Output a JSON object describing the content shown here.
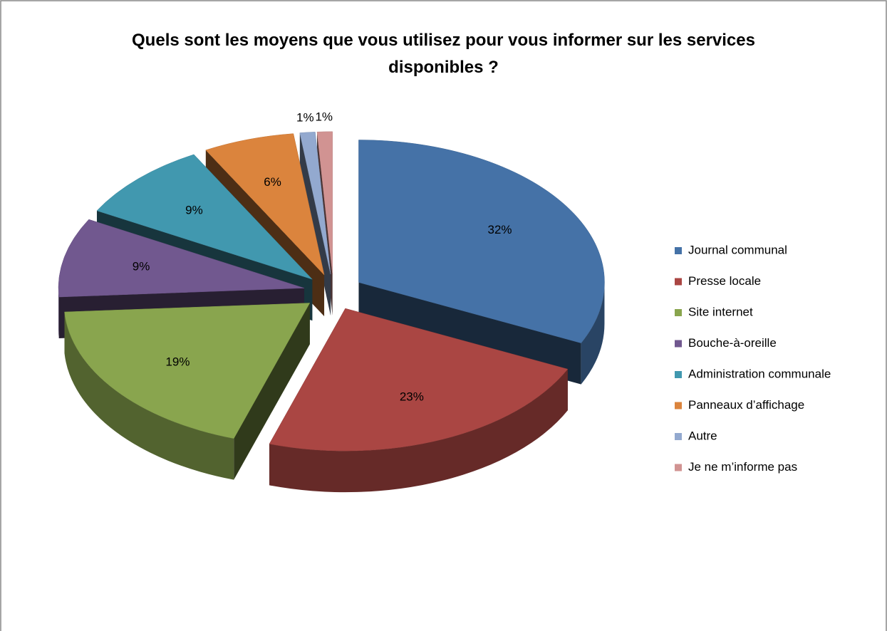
{
  "chart_data": {
    "type": "pie3d",
    "title": "Quels sont les moyens que vous utilisez pour vous informer sur les services  disponibles ?",
    "categories": [
      "Journal communal",
      "Presse locale",
      "Site internet",
      "Bouche-à-oreille",
      "Administration communale",
      "Panneaux d’affichage",
      "Autre",
      "Je ne m’informe pas"
    ],
    "values": [
      32,
      23,
      19,
      9,
      9,
      6,
      1,
      1
    ],
    "value_labels": [
      "32%",
      "23%",
      "19%",
      "9%",
      "9%",
      "6%",
      "1%",
      "1%"
    ],
    "colors": [
      "#4572a7",
      "#aa4643",
      "#89a54e",
      "#71588f",
      "#4198af",
      "#db843d",
      "#93a9cf",
      "#d19392"
    ],
    "legend": "right"
  }
}
